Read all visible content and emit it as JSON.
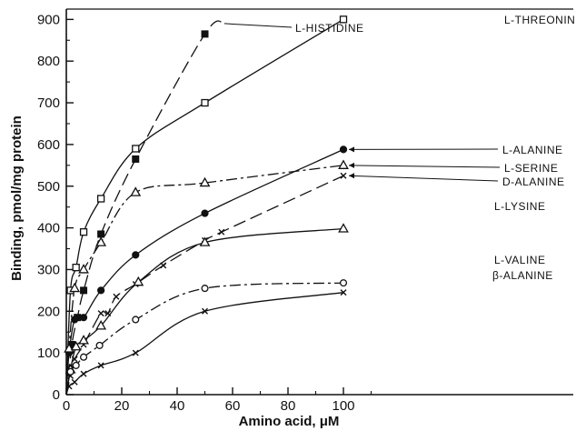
{
  "chart_data": {
    "type": "line",
    "title": "",
    "xlabel": "Amino acid, μM",
    "ylabel": "Binding, pmol/mg protein",
    "xlim": [
      0,
      125
    ],
    "ylim": [
      0,
      920
    ],
    "xticks": [
      0,
      20,
      40,
      60,
      80,
      100
    ],
    "yticks": [
      0,
      100,
      200,
      300,
      400,
      500,
      600,
      700,
      800,
      900
    ],
    "grid": false,
    "legend": "direct labels at line ends",
    "series": [
      {
        "name": "L-HISTIDINE",
        "marker": "filled-square",
        "line": "long-dash",
        "x": [
          2,
          4,
          6.25,
          12.5,
          25,
          50
        ],
        "y": [
          120,
          185,
          250,
          385,
          565,
          865
        ]
      },
      {
        "name": "L-THREONINE",
        "marker": "open-square",
        "line": "solid",
        "x": [
          1.5,
          3.5,
          6.25,
          12.5,
          25,
          50,
          100
        ],
        "y": [
          250,
          305,
          390,
          470,
          590,
          700,
          900
        ]
      },
      {
        "name": "L-ALANINE",
        "marker": "filled-circle",
        "line": "solid",
        "x": [
          1,
          3,
          6.25,
          12.5,
          25,
          50,
          100
        ],
        "y": [
          100,
          180,
          185,
          250,
          335,
          435,
          588
        ]
      },
      {
        "name": "L-SERINE",
        "marker": "open-triangle",
        "line": "dash-dot",
        "x": [
          1,
          3,
          6.25,
          12.5,
          25,
          50,
          100
        ],
        "y": [
          110,
          255,
          300,
          365,
          485,
          508,
          550
        ]
      },
      {
        "name": "D-ALANINE",
        "marker": "cross",
        "line": "long-dash",
        "x": [
          1.5,
          3,
          6.25,
          12.5,
          15,
          18,
          25,
          35,
          50,
          56,
          100
        ],
        "y": [
          45,
          85,
          120,
          195,
          195,
          235,
          265,
          310,
          370,
          390,
          525
        ]
      },
      {
        "name": "L-LYSINE",
        "marker": "open-triangle",
        "line": "solid",
        "x": [
          1.5,
          3.5,
          6.25,
          12.5,
          26,
          50,
          100
        ],
        "y": [
          60,
          115,
          130,
          165,
          270,
          365,
          398
        ]
      },
      {
        "name": "L-VALINE",
        "marker": "open-circle",
        "line": "dash-dot",
        "x": [
          1.5,
          3.5,
          6.25,
          12,
          25,
          50,
          100
        ],
        "y": [
          55,
          70,
          90,
          118,
          180,
          255,
          268
        ]
      },
      {
        "name": "β-ALANINE",
        "marker": "cross",
        "line": "solid",
        "x": [
          1,
          3,
          6.25,
          12.5,
          25,
          50,
          100
        ],
        "y": [
          20,
          30,
          50,
          70,
          100,
          200,
          245
        ]
      }
    ]
  }
}
